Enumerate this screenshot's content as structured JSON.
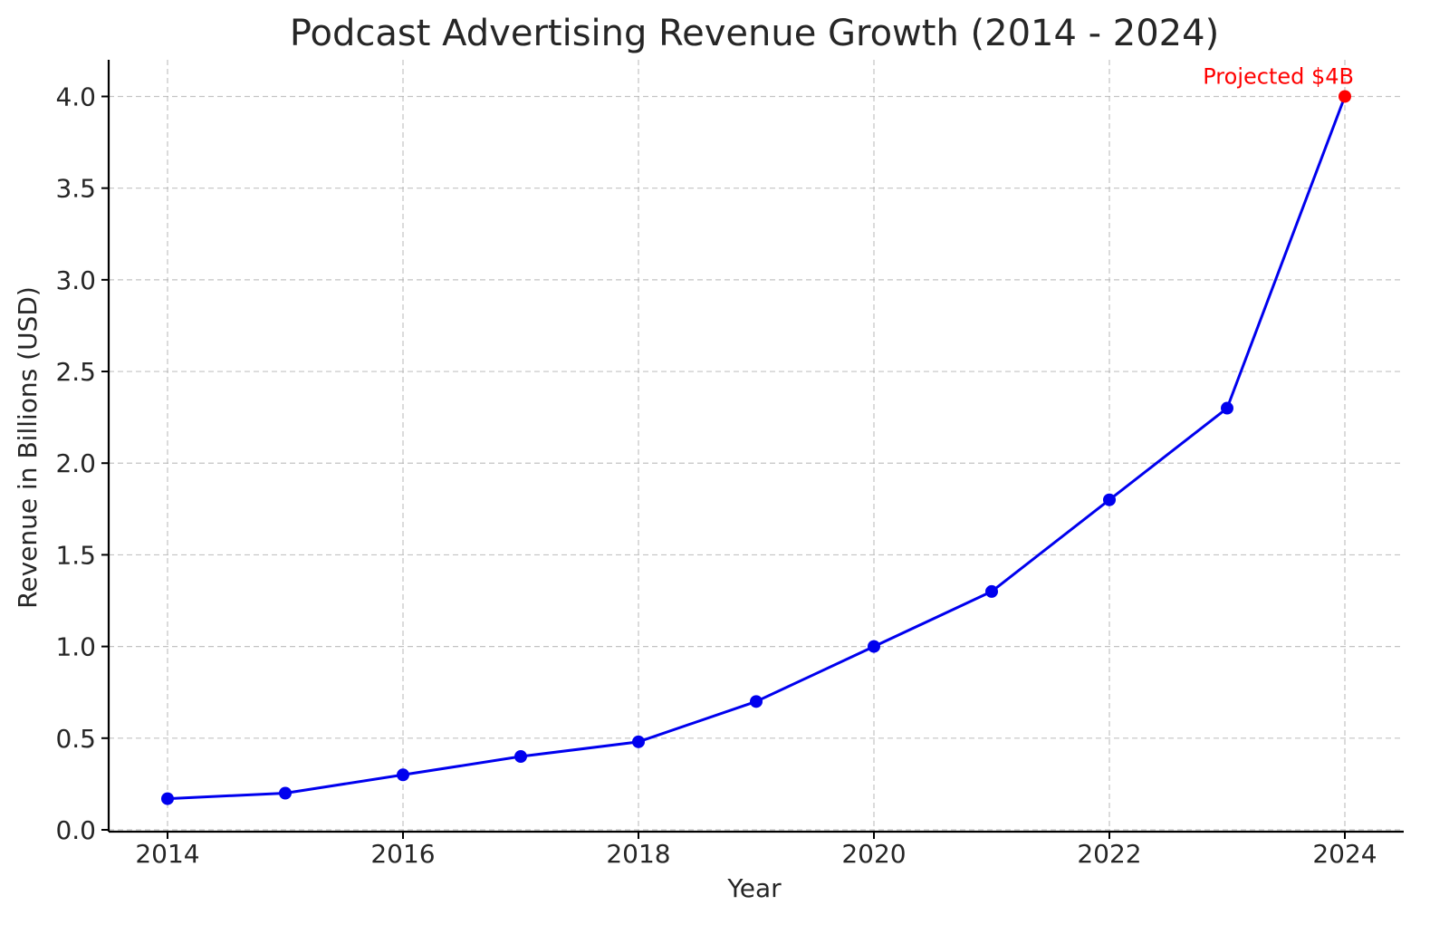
{
  "chart_data": {
    "type": "line",
    "title": "Podcast Advertising Revenue Growth (2014 - 2024)",
    "xlabel": "Year",
    "ylabel": "Revenue in Billions (USD)",
    "x": [
      2014,
      2015,
      2016,
      2017,
      2018,
      2019,
      2020,
      2021,
      2022,
      2023,
      2024
    ],
    "series": [
      {
        "values": [
          0.17,
          0.2,
          0.3,
          0.4,
          0.48,
          0.7,
          1.0,
          1.3,
          1.8,
          2.3,
          4.0
        ],
        "color": "#0000ee"
      }
    ],
    "highlight": {
      "x": 2024,
      "y": 4.0,
      "color": "#ff0000"
    },
    "annotations": [
      {
        "text": "Projected $4B",
        "x": 2024,
        "y": 4.0,
        "color": "#ff0000"
      }
    ],
    "x_ticks": [
      "2014",
      "2016",
      "2018",
      "2020",
      "2022",
      "2024"
    ],
    "y_ticks": [
      "0.0",
      "0.5",
      "1.0",
      "1.5",
      "2.0",
      "2.5",
      "3.0",
      "3.5",
      "4.0"
    ],
    "xlim": [
      2013.5,
      2024.5
    ],
    "ylim": [
      -0.01,
      4.2
    ],
    "grid": true,
    "legend": "none"
  }
}
